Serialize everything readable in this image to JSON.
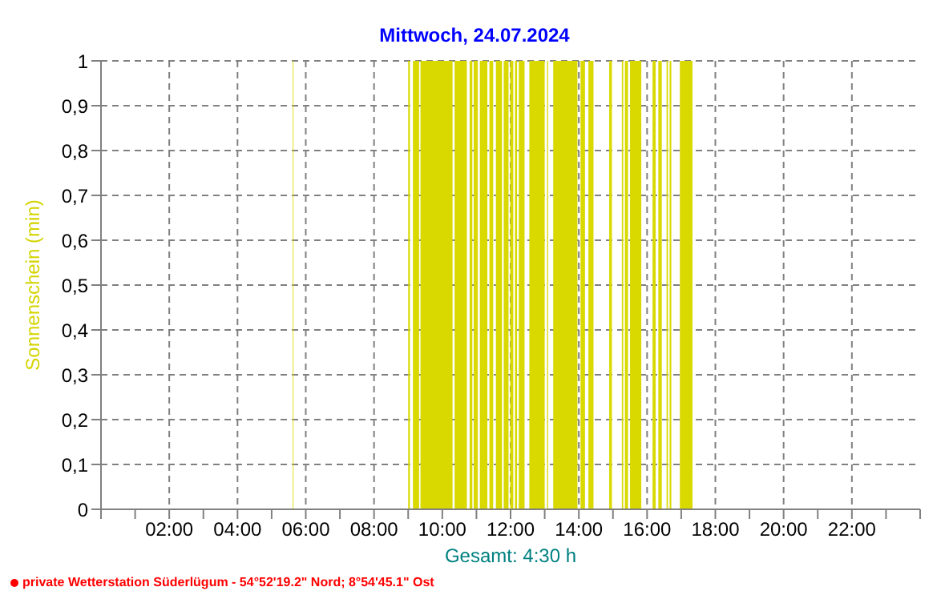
{
  "chart_data": {
    "type": "area",
    "title": "Mittwoch, 24.07.2024",
    "ylabel": "Sonnenschein (min)",
    "xlabel": "Gesamt: 4:30 h",
    "annotations": [
      "private Wetterstation Süderlügum - 54°52'19.2\" Nord; 8°54'45.1\" Ost"
    ],
    "xlim": [
      0,
      24
    ],
    "xticks": [
      {
        "value": 0,
        "label": null
      },
      {
        "value": 1,
        "label": null
      },
      {
        "value": 2,
        "label": "02:00"
      },
      {
        "value": 3,
        "label": null
      },
      {
        "value": 4,
        "label": "04:00"
      },
      {
        "value": 5,
        "label": null
      },
      {
        "value": 6,
        "label": "06:00"
      },
      {
        "value": 7,
        "label": null
      },
      {
        "value": 8,
        "label": "08:00"
      },
      {
        "value": 9,
        "label": null
      },
      {
        "value": 10,
        "label": "10:00"
      },
      {
        "value": 11,
        "label": null
      },
      {
        "value": 12,
        "label": "12:00"
      },
      {
        "value": 13,
        "label": null
      },
      {
        "value": 14,
        "label": "14:00"
      },
      {
        "value": 15,
        "label": null
      },
      {
        "value": 16,
        "label": "16:00"
      },
      {
        "value": 17,
        "label": null
      },
      {
        "value": 18,
        "label": "18:00"
      },
      {
        "value": 19,
        "label": null
      },
      {
        "value": 20,
        "label": "20:00"
      },
      {
        "value": 21,
        "label": null
      },
      {
        "value": 22,
        "label": "22:00"
      },
      {
        "value": 23,
        "label": null
      },
      {
        "value": 24,
        "label": null
      }
    ],
    "ylim": [
      0,
      1
    ],
    "yticks": [
      0,
      {
        "value": 0.1,
        "label": "0,1"
      },
      {
        "value": 0.2,
        "label": "0,2"
      },
      {
        "value": 0.3,
        "label": "0,3"
      },
      {
        "value": 0.4,
        "label": "0,4"
      },
      {
        "value": 0.5,
        "label": "0,5"
      },
      {
        "value": 0.6,
        "label": "0,6"
      },
      {
        "value": 0.7,
        "label": "0,7"
      },
      {
        "value": 0.8,
        "label": "0,8"
      },
      {
        "value": 0.9,
        "label": "0,9"
      },
      1
    ],
    "grid": true,
    "series": [
      {
        "color": "#d9d900",
        "x": [
          5.62,
          5.62,
          5.64,
          5.64,
          9.0,
          9.0,
          9.05,
          9.05,
          9.14,
          9.14,
          9.32,
          9.32,
          9.36,
          9.36,
          10.3,
          10.3,
          10.36,
          10.36,
          10.72,
          10.72,
          10.8,
          10.8,
          10.88,
          10.88,
          10.92,
          10.92,
          11.04,
          11.04,
          11.1,
          11.1,
          11.32,
          11.32,
          11.38,
          11.38,
          11.49,
          11.49,
          11.57,
          11.57,
          11.75,
          11.75,
          11.8,
          11.8,
          11.94,
          11.94,
          11.99,
          11.99,
          12.08,
          12.08,
          12.13,
          12.13,
          12.19,
          12.19,
          12.24,
          12.24,
          12.41,
          12.41,
          12.55,
          12.55,
          13.0,
          13.0,
          13.07,
          13.07,
          13.1,
          13.1,
          13.25,
          13.25,
          13.96,
          13.96,
          14.05,
          14.05,
          14.18,
          14.18,
          14.28,
          14.28,
          14.43,
          14.43,
          14.89,
          14.89,
          14.97,
          14.97,
          15.26,
          15.26,
          15.3,
          15.3,
          15.35,
          15.35,
          15.44,
          15.44,
          15.5,
          15.5,
          15.83,
          15.83,
          16.16,
          16.16,
          16.25,
          16.25,
          16.33,
          16.33,
          16.43,
          16.43,
          16.57,
          16.57,
          16.61,
          16.61,
          16.66,
          16.66,
          16.71,
          16.71,
          16.96,
          16.96,
          17.33,
          17.33
        ],
        "values": [
          0,
          1,
          1,
          0,
          0,
          1,
          1,
          0,
          0,
          1,
          1,
          0,
          0,
          1,
          1,
          0,
          0,
          1,
          1,
          0,
          0,
          1,
          1,
          0,
          0,
          1,
          1,
          0,
          0,
          1,
          1,
          0,
          0,
          1,
          1,
          0,
          0,
          1,
          1,
          0,
          0,
          1,
          1,
          0,
          0,
          1,
          1,
          0,
          0,
          1,
          1,
          0,
          0,
          1,
          1,
          0,
          0,
          1,
          1,
          0,
          0,
          1,
          1,
          0,
          0,
          1,
          1,
          0,
          0,
          1,
          1,
          0,
          0,
          1,
          1,
          0,
          0,
          1,
          1,
          0,
          0,
          1,
          1,
          0,
          0,
          1,
          1,
          0,
          0,
          1,
          1,
          0,
          0,
          1,
          1,
          0,
          0,
          1,
          1,
          0,
          0,
          1,
          1,
          0,
          0,
          1,
          1,
          0,
          0,
          1,
          1,
          0
        ]
      }
    ]
  }
}
